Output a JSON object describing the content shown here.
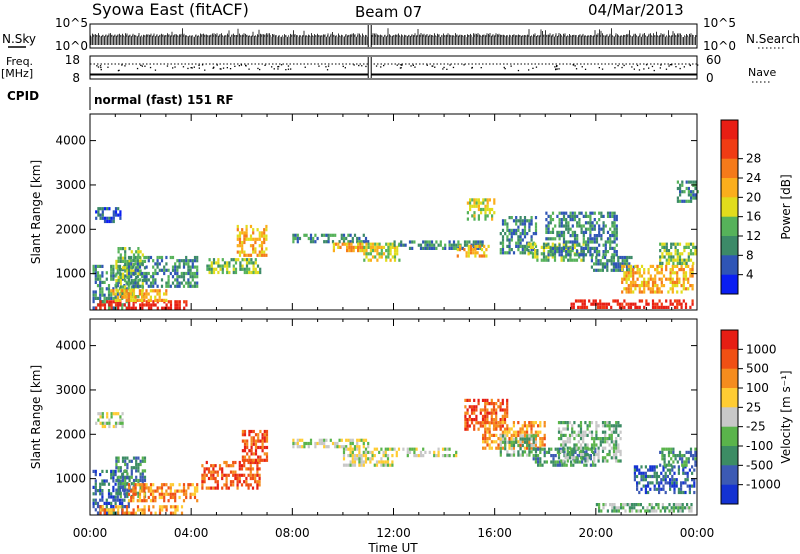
{
  "header": {
    "station": "Syowa East (fitACF)",
    "beam": "Beam 07",
    "date": "04/Mar/2013"
  },
  "side_labels": {
    "nsky": "N.Sky",
    "nsearch": "N.Search",
    "freq": "Freq.",
    "mhz": "[MHz]",
    "cpid": "CPID",
    "nave": "Nave",
    "cpid_text": "normal (fast) 151 RF"
  },
  "strip_ticks": {
    "noise_left": [
      "10^5",
      "10^0"
    ],
    "noise_right": [
      "10^5",
      "10^0"
    ],
    "freq_left": [
      "18",
      "8"
    ],
    "nave_right": [
      "60",
      "0"
    ]
  },
  "chart_data": [
    {
      "type": "heatmap",
      "name": "power-panel",
      "ylabel": "Slant Range [km]",
      "xlabel": "",
      "y_ticks": [
        "1000",
        "2000",
        "3000",
        "4000"
      ],
      "ylim": [
        180,
        4600
      ],
      "xlim": [
        0,
        24
      ],
      "colorbar": {
        "label": "Power [dB]",
        "ticks": [
          "4",
          "8",
          "12",
          "16",
          "20",
          "24",
          "28"
        ],
        "colors": [
          "#0a1ef2",
          "#2f55b6",
          "#3c8a68",
          "#56b25a",
          "#e1dc1c",
          "#fbae1c",
          "#f57a1a",
          "#f03c14",
          "#e81e14"
        ]
      },
      "echo_regions": [
        {
          "t": [
            0.2,
            1.2
          ],
          "r": [
            2200,
            2500
          ],
          "level": 1
        },
        {
          "t": [
            0.1,
            1.5
          ],
          "r": [
            250,
            1200
          ],
          "level": 2
        },
        {
          "t": [
            1.0,
            2.2
          ],
          "r": [
            500,
            1600
          ],
          "level": 3
        },
        {
          "t": [
            0.2,
            3.8
          ],
          "r": [
            200,
            400
          ],
          "level": 8
        },
        {
          "t": [
            0.8,
            3.0
          ],
          "r": [
            400,
            650
          ],
          "level": 5
        },
        {
          "t": [
            1.5,
            4.2
          ],
          "r": [
            700,
            1400
          ],
          "level": 2
        },
        {
          "t": [
            4.6,
            6.7
          ],
          "r": [
            1050,
            1350
          ],
          "level": 3
        },
        {
          "t": [
            5.8,
            7.0
          ],
          "r": [
            1400,
            2100
          ],
          "level": 5
        },
        {
          "t": [
            8.0,
            11.0
          ],
          "r": [
            1700,
            1900
          ],
          "level": 2
        },
        {
          "t": [
            9.6,
            10.8
          ],
          "r": [
            1550,
            1700
          ],
          "level": 5
        },
        {
          "t": [
            10.8,
            12.2
          ],
          "r": [
            1300,
            1700
          ],
          "level": 4
        },
        {
          "t": [
            12.0,
            15.5
          ],
          "r": [
            1550,
            1750
          ],
          "level": 2
        },
        {
          "t": [
            14.5,
            15.8
          ],
          "r": [
            1400,
            1650
          ],
          "level": 5
        },
        {
          "t": [
            14.9,
            16.0
          ],
          "r": [
            2200,
            2700
          ],
          "level": 4
        },
        {
          "t": [
            16.2,
            17.6
          ],
          "r": [
            1450,
            2300
          ],
          "level": 2
        },
        {
          "t": [
            17.3,
            19.5
          ],
          "r": [
            1300,
            1700
          ],
          "level": 3
        },
        {
          "t": [
            18.0,
            20.8
          ],
          "r": [
            1400,
            2400
          ],
          "level": 2
        },
        {
          "t": [
            19.8,
            21.5
          ],
          "r": [
            1100,
            1400
          ],
          "level": 2
        },
        {
          "t": [
            19.0,
            23.8
          ],
          "r": [
            260,
            420
          ],
          "level": 8
        },
        {
          "t": [
            21.0,
            23.8
          ],
          "r": [
            600,
            1200
          ],
          "level": 5
        },
        {
          "t": [
            22.5,
            23.9
          ],
          "r": [
            1200,
            1700
          ],
          "level": 3
        },
        {
          "t": [
            23.2,
            24.0
          ],
          "r": [
            2600,
            3100
          ],
          "level": 2
        }
      ]
    },
    {
      "type": "heatmap",
      "name": "velocity-panel",
      "ylabel": "Slant Range [km]",
      "xlabel": "Time UT",
      "x_ticks": [
        "00:00",
        "04:00",
        "08:00",
        "12:00",
        "16:00",
        "20:00",
        "00:00"
      ],
      "y_ticks": [
        "1000",
        "2000",
        "3000",
        "4000"
      ],
      "ylim": [
        180,
        4600
      ],
      "xlim": [
        0,
        24
      ],
      "colorbar": {
        "label": "Velocity [m s⁻¹]",
        "ticks": [
          "1000",
          "500",
          "100",
          "25",
          "-25",
          "-100",
          "-500",
          "-1000"
        ],
        "colors": [
          "#1432d2",
          "#3c5ab4",
          "#3c8c64",
          "#5ab44b",
          "#c8c8c8",
          "#ffcc33",
          "#f58c1e",
          "#f05014",
          "#e61e14"
        ]
      },
      "echo_regions": [
        {
          "t": [
            0.2,
            1.3
          ],
          "r": [
            2200,
            2500
          ],
          "level": 4
        },
        {
          "t": [
            0.1,
            1.5
          ],
          "r": [
            250,
            1200
          ],
          "level": 1
        },
        {
          "t": [
            1.0,
            2.2
          ],
          "r": [
            600,
            1500
          ],
          "level": 2
        },
        {
          "t": [
            0.2,
            3.6
          ],
          "r": [
            200,
            400
          ],
          "level": 6
        },
        {
          "t": [
            1.5,
            4.2
          ],
          "r": [
            500,
            900
          ],
          "level": 6
        },
        {
          "t": [
            4.4,
            6.7
          ],
          "r": [
            800,
            1400
          ],
          "level": 7
        },
        {
          "t": [
            6.0,
            7.0
          ],
          "r": [
            1400,
            2100
          ],
          "level": 7
        },
        {
          "t": [
            8.0,
            11.0
          ],
          "r": [
            1700,
            1900
          ],
          "level": 4
        },
        {
          "t": [
            10.0,
            12.0
          ],
          "r": [
            1300,
            1700
          ],
          "level": 4
        },
        {
          "t": [
            12.0,
            14.5
          ],
          "r": [
            1500,
            1700
          ],
          "level": 4
        },
        {
          "t": [
            14.8,
            16.5
          ],
          "r": [
            2100,
            2800
          ],
          "level": 7
        },
        {
          "t": [
            15.5,
            18.0
          ],
          "r": [
            1700,
            2300
          ],
          "level": 6
        },
        {
          "t": [
            16.2,
            17.6
          ],
          "r": [
            1500,
            2000
          ],
          "level": 3
        },
        {
          "t": [
            17.5,
            20.0
          ],
          "r": [
            1300,
            1700
          ],
          "level": 2
        },
        {
          "t": [
            18.5,
            21.0
          ],
          "r": [
            1400,
            2300
          ],
          "level": 3
        },
        {
          "t": [
            20.0,
            23.8
          ],
          "r": [
            250,
            450
          ],
          "level": 3
        },
        {
          "t": [
            21.5,
            23.9
          ],
          "r": [
            700,
            1300
          ],
          "level": 1
        },
        {
          "t": [
            22.5,
            23.9
          ],
          "r": [
            1300,
            1700
          ],
          "level": 2
        }
      ]
    }
  ]
}
